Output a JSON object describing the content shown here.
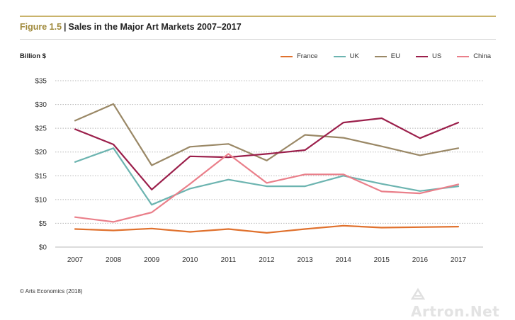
{
  "header": {
    "figure_label": "Figure 1.5",
    "separator": "|",
    "title": "Sales in the Major Art Markets 2007–2017"
  },
  "footer": {
    "source": "© Arts Economics (2018)"
  },
  "watermark": {
    "text": "Artron.Net"
  },
  "colors": {
    "France": "#e0712d",
    "UK": "#6cb4b0",
    "EU": "#9a8866",
    "US": "#9b1f4b",
    "China": "#ea7f8a",
    "accent_gold": "#c9b36b",
    "grid": "#b8b8b8"
  },
  "chart_data": {
    "type": "line",
    "title": "Sales in the Major Art Markets 2007–2017",
    "xlabel": "",
    "ylabel": "Billion $",
    "categories": [
      "2007",
      "2008",
      "2009",
      "2010",
      "2011",
      "2012",
      "2013",
      "2014",
      "2015",
      "2016",
      "2017"
    ],
    "ylim": [
      0,
      35
    ],
    "yticks": [
      0,
      5,
      10,
      15,
      20,
      25,
      30,
      35
    ],
    "ytick_labels": [
      "$0",
      "$5",
      "$10",
      "$15",
      "$20",
      "$25",
      "$30",
      "$35"
    ],
    "grid": true,
    "legend_position": "top-right",
    "series": [
      {
        "name": "France",
        "values": [
          3.8,
          3.5,
          3.9,
          3.2,
          3.8,
          3.0,
          3.8,
          4.5,
          4.1,
          4.2,
          4.3
        ]
      },
      {
        "name": "UK",
        "values": [
          17.9,
          20.8,
          8.9,
          12.3,
          14.2,
          12.8,
          12.8,
          15.0,
          13.3,
          11.8,
          12.8
        ]
      },
      {
        "name": "EU",
        "values": [
          26.6,
          30.1,
          17.2,
          21.1,
          21.7,
          18.2,
          23.6,
          23.0,
          21.2,
          19.3,
          20.8
        ]
      },
      {
        "name": "US",
        "values": [
          24.8,
          21.6,
          12.1,
          19.1,
          18.9,
          19.6,
          20.4,
          26.2,
          27.1,
          22.9,
          26.2
        ]
      },
      {
        "name": "China",
        "values": [
          6.3,
          5.3,
          7.3,
          13.3,
          19.6,
          13.5,
          15.3,
          15.3,
          11.7,
          11.3,
          13.2
        ]
      }
    ]
  }
}
